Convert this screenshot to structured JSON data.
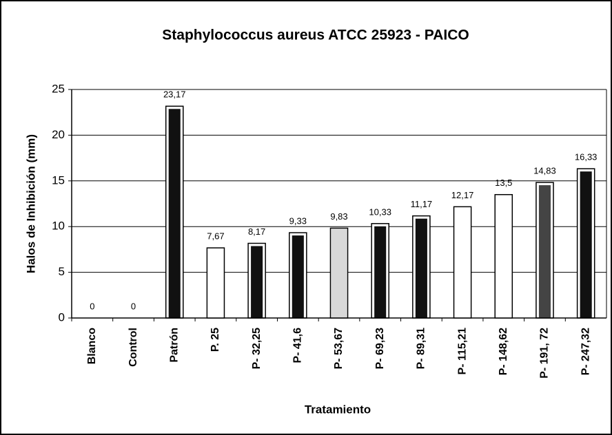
{
  "chart_data": {
    "type": "bar",
    "title": "Staphylococcus aureus ATCC 25923 - PAICO",
    "ylabel": "Halos de Inhibición (mm)",
    "xlabel": "Tratamiento",
    "categories": [
      "Blanco",
      "Control",
      "Patrón",
      "P. 25",
      "P- 32,25",
      "P- 41,6",
      "P- 53,67",
      "P- 69,23",
      "P- 89,31",
      "P- 115,21",
      "P- 148,62",
      "P- 191, 72",
      "P- 247,32"
    ],
    "values": [
      0,
      0,
      23.17,
      7.67,
      8.17,
      9.33,
      9.83,
      10.33,
      11.17,
      12.17,
      13.5,
      14.83,
      16.33
    ],
    "value_labels": [
      "0",
      "0",
      "23,17",
      "7,67",
      "8,17",
      "9,33",
      "9,83",
      "10,33",
      "11,17",
      "12,17",
      "13,5",
      "14,83",
      "16,33"
    ],
    "colors": [
      "#ffffff",
      "#ffffff",
      "#111111",
      "#ffffff",
      "#111111",
      "#111111",
      "#d8d8d8",
      "#111111",
      "#111111",
      "#ffffff",
      "#ffffff",
      "#444444",
      "#111111"
    ],
    "ylim": [
      0,
      25
    ],
    "yticks": [
      0,
      5,
      10,
      15,
      20,
      25
    ],
    "grid": true
  }
}
